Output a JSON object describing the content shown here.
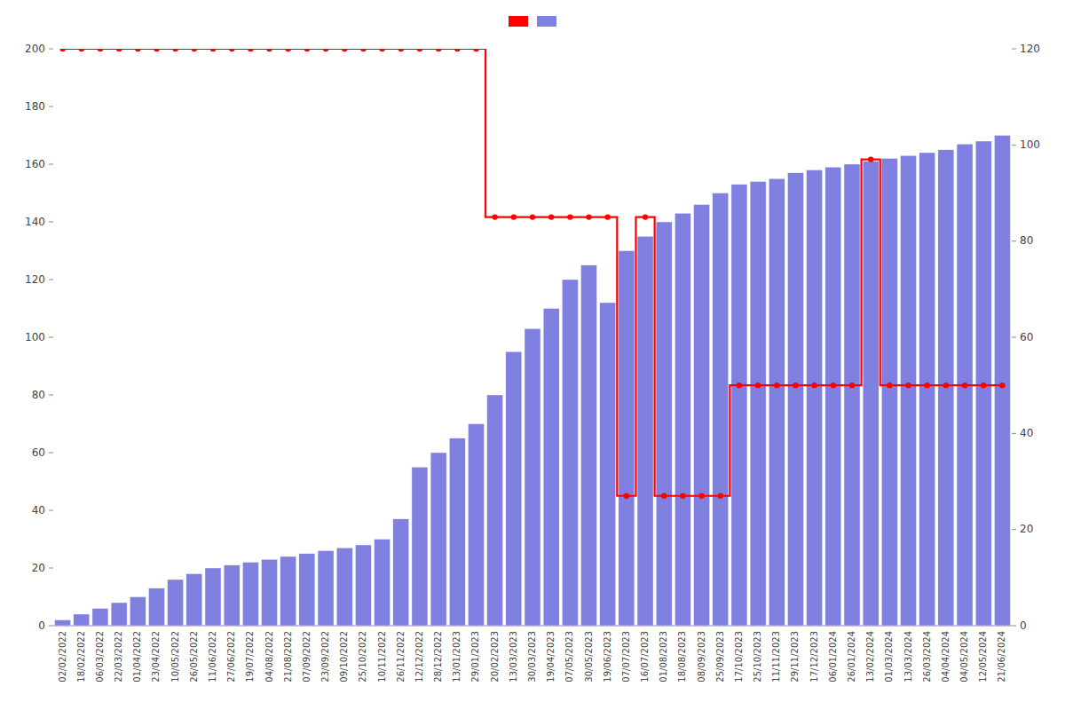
{
  "chart_data": {
    "type": "bar",
    "categories": [
      "02/02/2022",
      "18/02/2022",
      "06/03/2022",
      "22/03/2022",
      "01/04/2022",
      "23/04/2022",
      "10/05/2022",
      "26/05/2022",
      "11/06/2022",
      "27/06/2022",
      "19/07/2022",
      "04/08/2022",
      "21/08/2022",
      "07/09/2022",
      "23/09/2022",
      "09/10/2022",
      "25/10/2022",
      "10/11/2022",
      "26/11/2022",
      "12/12/2022",
      "28/12/2022",
      "13/01/2023",
      "29/01/2023",
      "20/02/2023",
      "13/03/2023",
      "30/03/2023",
      "19/04/2023",
      "07/05/2023",
      "30/05/2023",
      "19/06/2023",
      "07/07/2023",
      "16/07/2023",
      "01/08/2023",
      "18/08/2023",
      "08/09/2023",
      "25/09/2023",
      "17/10/2023",
      "25/10/2023",
      "11/11/2023",
      "29/11/2023",
      "17/12/2023",
      "06/01/2024",
      "26/01/2024",
      "13/02/2024",
      "01/03/2024",
      "13/03/2024",
      "26/03/2024",
      "04/04/2024",
      "04/05/2024",
      "12/05/2024",
      "21/06/2024"
    ],
    "series": [
      {
        "type": "bar",
        "color": "#8080e0",
        "values": [
          2,
          4,
          6,
          8,
          10,
          13,
          16,
          18,
          20,
          21,
          22,
          23,
          24,
          25,
          26,
          27,
          28,
          30,
          37,
          55,
          60,
          65,
          70,
          80,
          95,
          103,
          110,
          120,
          125,
          112,
          130,
          135,
          140,
          143,
          146,
          150,
          153,
          154,
          155,
          157,
          158,
          159,
          160,
          161,
          162,
          163,
          164,
          165,
          167,
          168,
          170
        ]
      },
      {
        "type": "line",
        "line_style": "step",
        "marker": "circle",
        "color": "#ff0000",
        "axis": "y2",
        "values": [
          120,
          120,
          120,
          120,
          120,
          120,
          120,
          120,
          120,
          120,
          120,
          120,
          120,
          120,
          120,
          120,
          120,
          120,
          120,
          120,
          120,
          120,
          120,
          85,
          85,
          85,
          85,
          85,
          85,
          85,
          27,
          85,
          27,
          27,
          27,
          27,
          50,
          50,
          50,
          50,
          50,
          50,
          50,
          97,
          50,
          50,
          50,
          50,
          50,
          50,
          50
        ]
      }
    ],
    "ylim": [
      0,
      200
    ],
    "yticks": [
      0,
      20,
      40,
      60,
      80,
      100,
      120,
      140,
      160,
      180,
      200
    ],
    "y2lim": [
      0,
      120
    ],
    "y2ticks": [
      0,
      20,
      40,
      60,
      80,
      100,
      120
    ],
    "grid": false,
    "legend": "top"
  }
}
